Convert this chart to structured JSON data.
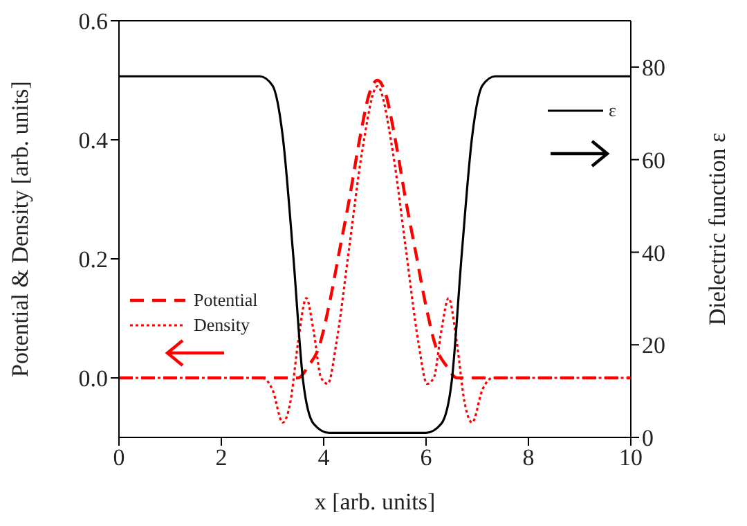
{
  "chart_data": {
    "type": "line",
    "xlabel": "x [arb. units]",
    "ylabel": "Potential & Density [arb. units]",
    "y2label": "Dielectric function ε",
    "xlim": [
      0,
      10
    ],
    "xticks": [
      0,
      2,
      4,
      6,
      8,
      10
    ],
    "ylim": [
      -0.1,
      0.6
    ],
    "yticks": [
      {
        "value": 0,
        "label": "0.0"
      },
      {
        "value": 0.2,
        "label": "0.2"
      },
      {
        "value": 0.4,
        "label": "0.4"
      },
      {
        "value": 0.6,
        "label": "0.6"
      }
    ],
    "y2lim": [
      0,
      90
    ],
    "y2ticks": [
      0,
      20,
      40,
      60,
      80
    ],
    "legend": "left",
    "marker": "none",
    "series": [
      {
        "name": "Potential",
        "color": "#ff0000",
        "line_style": "dashed",
        "x": [
          0,
          3.5,
          3.7,
          3.9,
          4.1,
          4.3,
          4.5,
          4.7,
          4.9,
          5.05,
          5.2,
          5.4,
          5.6,
          5.8,
          6.0,
          6.2,
          6.4,
          6.6,
          10
        ],
        "values": [
          0,
          0,
          0.02,
          0.05,
          0.12,
          0.21,
          0.3,
          0.4,
          0.48,
          0.5,
          0.48,
          0.4,
          0.3,
          0.21,
          0.12,
          0.05,
          0.02,
          0,
          0
        ]
      },
      {
        "name": "Density",
        "color": "#ff0000",
        "line_style": "dotted",
        "x": [
          0,
          2.8,
          3.0,
          3.2,
          3.35,
          3.5,
          3.66,
          3.8,
          3.95,
          4.08,
          4.25,
          4.5,
          4.75,
          5.05,
          5.35,
          5.6,
          5.85,
          6.02,
          6.15,
          6.3,
          6.44,
          6.6,
          6.75,
          6.9,
          7.1,
          7.3,
          10
        ],
        "values": [
          0,
          0,
          -0.02,
          -0.075,
          -0.04,
          0.06,
          0.134,
          0.08,
          0,
          -0.01,
          0.06,
          0.22,
          0.38,
          0.49,
          0.38,
          0.22,
          0.06,
          -0.01,
          0,
          0.08,
          0.134,
          0.06,
          -0.04,
          -0.075,
          -0.02,
          0,
          0
        ]
      },
      {
        "name": "ε",
        "color": "#000000",
        "line_style": "solid",
        "axis": "y2",
        "x": [
          0,
          2.75,
          3.0,
          3.2,
          3.4,
          3.6,
          3.8,
          4.1,
          6.0,
          6.3,
          6.5,
          6.7,
          6.9,
          7.1,
          7.35,
          10
        ],
        "values": [
          78,
          78,
          76,
          65,
          40,
          12,
          3,
          1,
          1,
          3,
          12,
          40,
          65,
          76,
          78,
          78
        ]
      }
    ]
  }
}
